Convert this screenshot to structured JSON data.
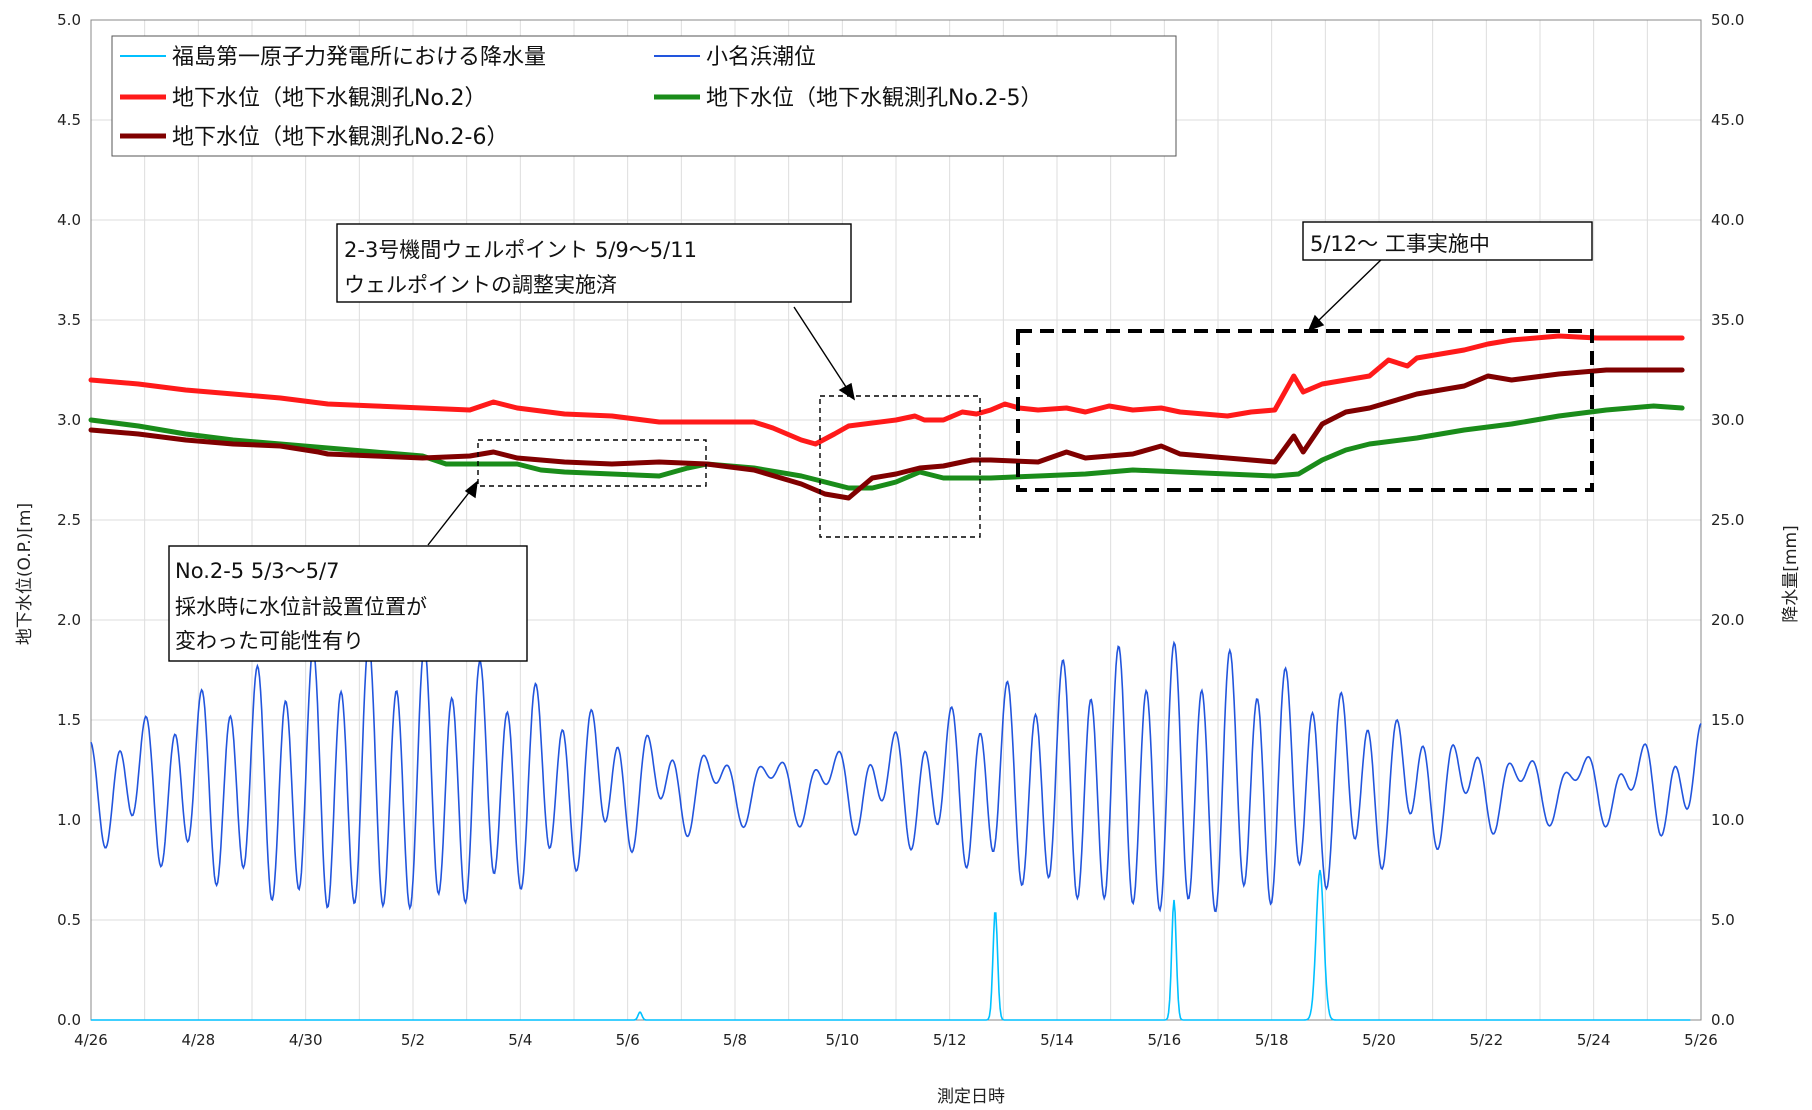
{
  "chart_data": {
    "type": "line",
    "xlabel": "測定日時",
    "ylabel_left": "地下水位(O.P.)[m]",
    "ylabel_right": "降水量[mm]",
    "x_ticks": [
      "4/26",
      "4/28",
      "4/30",
      "5/2",
      "5/4",
      "5/6",
      "5/8",
      "5/10",
      "5/12",
      "5/14",
      "5/16",
      "5/18",
      "5/20",
      "5/22",
      "5/24",
      "5/26"
    ],
    "x_range_days": [
      0,
      30
    ],
    "ylim_left": [
      0,
      5
    ],
    "ylim_right": [
      0,
      50
    ],
    "y_ticks_left": [
      "0.0",
      "0.5",
      "1.0",
      "1.5",
      "2.0",
      "2.5",
      "3.0",
      "3.5",
      "4.0",
      "4.5",
      "5.0"
    ],
    "y_ticks_right": [
      "0.0",
      "5.0",
      "10.0",
      "15.0",
      "20.0",
      "25.0",
      "30.0",
      "35.0",
      "40.0",
      "45.0",
      "50.0"
    ],
    "grid": true,
    "legend_position": "top-left",
    "legend": [
      {
        "label": "福島第一原子力発電所における降水量",
        "color": "#00c0ff"
      },
      {
        "label": "小名浜潮位",
        "color": "#2255dd"
      },
      {
        "label": "地下水位（地下水観測孔No.2）",
        "color": "#ff1a1a"
      },
      {
        "label": "地下水位（地下水観測孔No.2-5）",
        "color": "#1a8c1a"
      },
      {
        "label": "地下水位（地下水観測孔No.2-6）",
        "color": "#800000"
      }
    ],
    "series": [
      {
        "name": "地下水位（地下水観測孔No.2）",
        "axis": "left",
        "color": "#ff1a1a",
        "points": [
          [
            0,
            3.2
          ],
          [
            1,
            3.18
          ],
          [
            2,
            3.15
          ],
          [
            3,
            3.13
          ],
          [
            4,
            3.11
          ],
          [
            5,
            3.08
          ],
          [
            6,
            3.07
          ],
          [
            7,
            3.06
          ],
          [
            8,
            3.05
          ],
          [
            8.5,
            3.09
          ],
          [
            9,
            3.06
          ],
          [
            10,
            3.03
          ],
          [
            11,
            3.02
          ],
          [
            12,
            2.99
          ],
          [
            13,
            2.99
          ],
          [
            14,
            2.99
          ],
          [
            14.4,
            2.96
          ],
          [
            15,
            2.9
          ],
          [
            15.3,
            2.88
          ],
          [
            15.7,
            2.93
          ],
          [
            16,
            2.97
          ],
          [
            17,
            3.0
          ],
          [
            17.4,
            3.02
          ],
          [
            17.6,
            3.0
          ],
          [
            18,
            3.0
          ],
          [
            18.4,
            3.04
          ],
          [
            18.7,
            3.03
          ],
          [
            19,
            3.05
          ],
          [
            19.3,
            3.08
          ],
          [
            19.6,
            3.06
          ],
          [
            20,
            3.05
          ],
          [
            20.6,
            3.06
          ],
          [
            21,
            3.04
          ],
          [
            21.5,
            3.07
          ],
          [
            22,
            3.05
          ],
          [
            22.6,
            3.06
          ],
          [
            23,
            3.04
          ],
          [
            24,
            3.02
          ],
          [
            24.5,
            3.04
          ],
          [
            25,
            3.05
          ],
          [
            25.4,
            3.22
          ],
          [
            25.6,
            3.14
          ],
          [
            26,
            3.18
          ],
          [
            27,
            3.22
          ],
          [
            27.4,
            3.3
          ],
          [
            27.8,
            3.27
          ],
          [
            28,
            3.31
          ],
          [
            29,
            3.35
          ],
          [
            29.5,
            3.38
          ],
          [
            30,
            3.4
          ],
          [
            31,
            3.42
          ],
          [
            31.8,
            3.41
          ],
          [
            32,
            3.41
          ],
          [
            33,
            3.41
          ],
          [
            33.6,
            3.41
          ]
        ]
      },
      {
        "name": "地下水位（地下水観測孔No.2-5）",
        "axis": "left",
        "color": "#1a8c1a",
        "points": [
          [
            0,
            3.0
          ],
          [
            1,
            2.97
          ],
          [
            2,
            2.93
          ],
          [
            3,
            2.9
          ],
          [
            4,
            2.88
          ],
          [
            5,
            2.86
          ],
          [
            6,
            2.84
          ],
          [
            7,
            2.82
          ],
          [
            7.5,
            2.78
          ],
          [
            8,
            2.78
          ],
          [
            9,
            2.78
          ],
          [
            9.5,
            2.75
          ],
          [
            10,
            2.74
          ],
          [
            11,
            2.73
          ],
          [
            12,
            2.72
          ],
          [
            12.6,
            2.76
          ],
          [
            13,
            2.78
          ],
          [
            14,
            2.76
          ],
          [
            15,
            2.72
          ],
          [
            16,
            2.66
          ],
          [
            16.5,
            2.66
          ],
          [
            17,
            2.69
          ],
          [
            17.5,
            2.74
          ],
          [
            18,
            2.71
          ],
          [
            19,
            2.71
          ],
          [
            20,
            2.72
          ],
          [
            21,
            2.73
          ],
          [
            22,
            2.75
          ],
          [
            23,
            2.74
          ],
          [
            24,
            2.73
          ],
          [
            25,
            2.72
          ],
          [
            25.5,
            2.73
          ],
          [
            26,
            2.8
          ],
          [
            26.5,
            2.85
          ],
          [
            27,
            2.88
          ],
          [
            28,
            2.91
          ],
          [
            29,
            2.95
          ],
          [
            30,
            2.98
          ],
          [
            31,
            3.02
          ],
          [
            32,
            3.05
          ],
          [
            33,
            3.07
          ],
          [
            33.6,
            3.06
          ]
        ]
      },
      {
        "name": "地下水位（地下水観測孔No.2-6）",
        "axis": "left",
        "color": "#800000",
        "points": [
          [
            0,
            2.95
          ],
          [
            1,
            2.93
          ],
          [
            2,
            2.9
          ],
          [
            3,
            2.88
          ],
          [
            4,
            2.87
          ],
          [
            4.8,
            2.84
          ],
          [
            5,
            2.83
          ],
          [
            6,
            2.82
          ],
          [
            7,
            2.81
          ],
          [
            8,
            2.82
          ],
          [
            8.5,
            2.84
          ],
          [
            9,
            2.81
          ],
          [
            10,
            2.79
          ],
          [
            11,
            2.78
          ],
          [
            12,
            2.79
          ],
          [
            13,
            2.78
          ],
          [
            14,
            2.75
          ],
          [
            15,
            2.68
          ],
          [
            15.5,
            2.63
          ],
          [
            16,
            2.61
          ],
          [
            16.5,
            2.71
          ],
          [
            17,
            2.73
          ],
          [
            17.5,
            2.76
          ],
          [
            18,
            2.77
          ],
          [
            18.6,
            2.8
          ],
          [
            19,
            2.8
          ],
          [
            20,
            2.79
          ],
          [
            20.6,
            2.84
          ],
          [
            21,
            2.81
          ],
          [
            22,
            2.83
          ],
          [
            22.6,
            2.87
          ],
          [
            23,
            2.83
          ],
          [
            24,
            2.81
          ],
          [
            25,
            2.79
          ],
          [
            25.4,
            2.92
          ],
          [
            25.6,
            2.84
          ],
          [
            26,
            2.98
          ],
          [
            26.5,
            3.04
          ],
          [
            27,
            3.06
          ],
          [
            28,
            3.13
          ],
          [
            29,
            3.17
          ],
          [
            29.5,
            3.22
          ],
          [
            30,
            3.2
          ],
          [
            31,
            3.23
          ],
          [
            32,
            3.25
          ],
          [
            33,
            3.25
          ],
          [
            33.6,
            3.25
          ]
        ]
      }
    ]
  },
  "annotations": {
    "box_1": {
      "lines": [
        "2-3号機間ウェルポイント 5/9～5/11",
        "ウェルポイントの調整実施済"
      ]
    },
    "box_2": {
      "lines": [
        "5/12～ 工事実施中"
      ]
    },
    "box_3": {
      "lines": [
        "No.2-5 5/3～5/7",
        "採水時に水位計設置位置が",
        "変わった可能性有り"
      ]
    }
  }
}
